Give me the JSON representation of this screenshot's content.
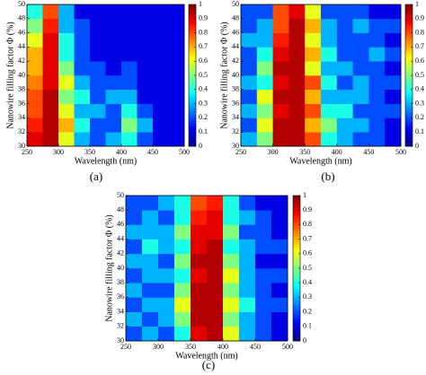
{
  "chart_data": [
    {
      "type": "heatmap",
      "label": "(a)",
      "x_label": "Wavelength (nm)",
      "y_label": "Nanowire filling factor Φ (%)",
      "colormap": "jet",
      "x_bins": [
        250,
        275,
        300,
        325,
        350,
        375,
        400,
        425,
        450,
        475,
        500
      ],
      "y_bins": [
        30,
        32,
        34,
        36,
        38,
        40,
        42,
        44,
        46,
        48,
        50
      ],
      "z": [
        [
          0.9,
          0.95,
          0.6,
          0.3,
          0.2,
          0.3,
          0.4,
          0.2,
          0.1,
          0.1
        ],
        [
          0.85,
          0.95,
          0.7,
          0.4,
          0.2,
          0.2,
          0.5,
          0.3,
          0.1,
          0.1
        ],
        [
          0.8,
          0.95,
          0.6,
          0.3,
          0.3,
          0.2,
          0.4,
          0.2,
          0.1,
          0.1
        ],
        [
          0.8,
          0.95,
          0.5,
          0.4,
          0.2,
          0.3,
          0.3,
          0.1,
          0.1,
          0.1
        ],
        [
          0.75,
          0.9,
          0.6,
          0.3,
          0.2,
          0.2,
          0.2,
          0.1,
          0.1,
          0.1
        ],
        [
          0.7,
          0.9,
          0.5,
          0.2,
          0.2,
          0.1,
          0.2,
          0.1,
          0.1,
          0.1
        ],
        [
          0.7,
          0.9,
          0.4,
          0.2,
          0.1,
          0.1,
          0.1,
          0.1,
          0.1,
          0.1
        ],
        [
          0.6,
          0.9,
          0.4,
          0.2,
          0.1,
          0.1,
          0.1,
          0.1,
          0.1,
          0.1
        ],
        [
          0.5,
          0.85,
          0.3,
          0.2,
          0.1,
          0.1,
          0.1,
          0.1,
          0.1,
          0.1
        ],
        [
          0.4,
          0.8,
          0.3,
          0.1,
          0.1,
          0.1,
          0.1,
          0.1,
          0.1,
          0.1
        ]
      ],
      "xlim": [
        250,
        500
      ],
      "xticks": [
        250,
        300,
        350,
        400,
        450,
        500
      ],
      "ylim": [
        30,
        50
      ],
      "yticks": [
        30,
        32,
        34,
        36,
        38,
        40,
        42,
        44,
        46,
        48,
        50
      ],
      "clim": [
        0,
        1
      ],
      "cticks": [
        0,
        0.1,
        0.2,
        0.3,
        0.4,
        0.5,
        0.6,
        0.7,
        0.8,
        0.9,
        1
      ]
    },
    {
      "type": "heatmap",
      "label": "(b)",
      "x_label": "Wavelength (nm)",
      "y_label": "Nanowire filling factor Φ (%)",
      "colormap": "jet",
      "x_bins": [
        250,
        275,
        300,
        325,
        350,
        375,
        400,
        425,
        450,
        475,
        500
      ],
      "y_bins": [
        30,
        32,
        34,
        36,
        38,
        40,
        42,
        44,
        46,
        48,
        50
      ],
      "z": [
        [
          0.3,
          0.5,
          0.95,
          0.95,
          0.8,
          0.4,
          0.3,
          0.2,
          0.2,
          0.1
        ],
        [
          0.2,
          0.6,
          0.95,
          0.95,
          0.7,
          0.5,
          0.3,
          0.3,
          0.2,
          0.1
        ],
        [
          0.3,
          0.5,
          0.9,
          0.95,
          0.8,
          0.4,
          0.4,
          0.2,
          0.2,
          0.2
        ],
        [
          0.2,
          0.6,
          0.95,
          0.95,
          0.7,
          0.3,
          0.3,
          0.3,
          0.2,
          0.1
        ],
        [
          0.3,
          0.4,
          0.9,
          0.95,
          0.8,
          0.4,
          0.2,
          0.3,
          0.2,
          0.2
        ],
        [
          0.2,
          0.5,
          0.95,
          0.95,
          0.6,
          0.3,
          0.3,
          0.2,
          0.2,
          0.1
        ],
        [
          0.2,
          0.4,
          0.9,
          0.95,
          0.7,
          0.4,
          0.2,
          0.2,
          0.3,
          0.2
        ],
        [
          0.3,
          0.3,
          0.85,
          0.95,
          0.6,
          0.3,
          0.2,
          0.2,
          0.2,
          0.1
        ],
        [
          0.2,
          0.3,
          0.8,
          0.95,
          0.7,
          0.3,
          0.2,
          0.3,
          0.2,
          0.2
        ],
        [
          0.2,
          0.2,
          0.8,
          0.9,
          0.6,
          0.2,
          0.2,
          0.2,
          0.1,
          0.1
        ]
      ],
      "xlim": [
        250,
        500
      ],
      "xticks": [
        250,
        300,
        350,
        400,
        450,
        500
      ],
      "ylim": [
        30,
        50
      ],
      "yticks": [
        30,
        32,
        34,
        36,
        38,
        40,
        42,
        44,
        46,
        48,
        50
      ],
      "clim": [
        0,
        1
      ],
      "cticks": [
        0,
        0.1,
        0.2,
        0.3,
        0.4,
        0.5,
        0.6,
        0.7,
        0.8,
        0.9,
        1
      ]
    },
    {
      "type": "heatmap",
      "label": "(c)",
      "x_label": "Wavelength (nm)",
      "y_label": "Nanowire filling factor Φ (%)",
      "colormap": "jet",
      "x_bins": [
        250,
        275,
        300,
        325,
        350,
        375,
        400,
        425,
        450,
        475,
        500
      ],
      "y_bins": [
        30,
        32,
        34,
        36,
        38,
        40,
        42,
        44,
        46,
        48,
        50
      ],
      "z": [
        [
          0.2,
          0.3,
          0.2,
          0.4,
          0.9,
          0.95,
          0.6,
          0.3,
          0.2,
          0.1
        ],
        [
          0.3,
          0.2,
          0.3,
          0.5,
          0.95,
          0.95,
          0.5,
          0.3,
          0.2,
          0.1
        ],
        [
          0.2,
          0.3,
          0.3,
          0.6,
          0.95,
          0.95,
          0.6,
          0.4,
          0.2,
          0.2
        ],
        [
          0.3,
          0.2,
          0.2,
          0.5,
          0.95,
          0.95,
          0.5,
          0.3,
          0.2,
          0.1
        ],
        [
          0.2,
          0.3,
          0.3,
          0.4,
          0.9,
          0.95,
          0.6,
          0.3,
          0.2,
          0.2
        ],
        [
          0.3,
          0.3,
          0.2,
          0.5,
          0.95,
          0.95,
          0.5,
          0.3,
          0.1,
          0.1
        ],
        [
          0.2,
          0.4,
          0.3,
          0.4,
          0.9,
          0.95,
          0.4,
          0.3,
          0.2,
          0.2
        ],
        [
          0.3,
          0.3,
          0.3,
          0.5,
          0.9,
          0.9,
          0.5,
          0.2,
          0.2,
          0.1
        ],
        [
          0.2,
          0.3,
          0.2,
          0.4,
          0.85,
          0.9,
          0.4,
          0.3,
          0.2,
          0.1
        ],
        [
          0.2,
          0.2,
          0.3,
          0.4,
          0.8,
          0.85,
          0.4,
          0.2,
          0.1,
          0.1
        ]
      ],
      "xlim": [
        250,
        500
      ],
      "xticks": [
        250,
        300,
        350,
        400,
        450,
        500
      ],
      "ylim": [
        30,
        50
      ],
      "yticks": [
        30,
        32,
        34,
        36,
        38,
        40,
        42,
        44,
        46,
        48,
        50
      ],
      "clim": [
        0,
        1
      ],
      "cticks": [
        0,
        0.1,
        0.2,
        0.3,
        0.4,
        0.5,
        0.6,
        0.7,
        0.8,
        0.9,
        1
      ]
    }
  ]
}
